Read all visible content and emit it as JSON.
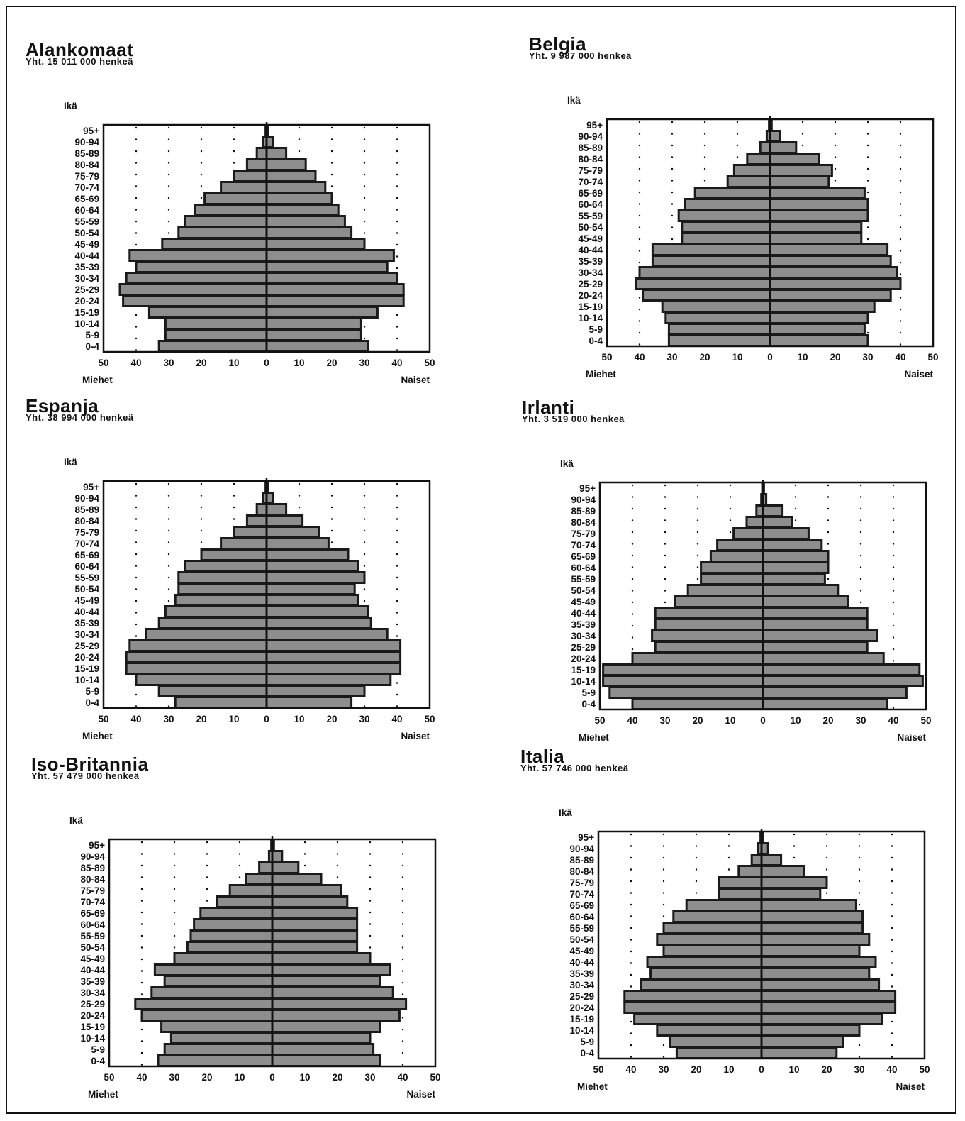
{
  "axis": {
    "age_label": "Ikä",
    "men_label": "Miehet",
    "women_label": "Naiset",
    "x_ticks": [
      "50",
      "40",
      "30",
      "20",
      "10",
      "0",
      "10",
      "20",
      "30",
      "40",
      "50"
    ],
    "xlim": [
      -50,
      50
    ]
  },
  "colors": {
    "bar": "#8e8e8e",
    "bar_edge": "#1a1a1a",
    "frame": "#111111"
  },
  "chart_data": [
    {
      "type": "bar",
      "country": "Alankomaat",
      "total": "Yht. 15 011 000 henkeä",
      "categories": [
        "0-4",
        "5-9",
        "10-14",
        "15-19",
        "20-24",
        "25-29",
        "30-34",
        "35-39",
        "40-44",
        "45-49",
        "50-54",
        "55-59",
        "60-64",
        "65-69",
        "70-74",
        "75-79",
        "80-84",
        "85-89",
        "90-94",
        "95+"
      ],
      "series": [
        {
          "name": "Miehet",
          "values": [
            33,
            31,
            31,
            36,
            44,
            45,
            43,
            40,
            42,
            32,
            27,
            25,
            22,
            19,
            14,
            10,
            6,
            3,
            1,
            0.3
          ]
        },
        {
          "name": "Naiset",
          "values": [
            31,
            29,
            29,
            34,
            42,
            42,
            40,
            37,
            39,
            30,
            26,
            24,
            22,
            20,
            18,
            15,
            12,
            6,
            2,
            0.5
          ]
        }
      ]
    },
    {
      "type": "bar",
      "country": "Belgia",
      "total": "Yht. 9 987 000 henkeä",
      "categories": [
        "0-4",
        "5-9",
        "10-14",
        "15-19",
        "20-24",
        "25-29",
        "30-34",
        "35-39",
        "40-44",
        "45-49",
        "50-54",
        "55-59",
        "60-64",
        "65-69",
        "70-74",
        "75-79",
        "80-84",
        "85-89",
        "90-94",
        "95+"
      ],
      "series": [
        {
          "name": "Miehet",
          "values": [
            31,
            31,
            32,
            33,
            39,
            41,
            40,
            36,
            36,
            27,
            27,
            28,
            26,
            23,
            13,
            11,
            7,
            3,
            1,
            0.3
          ]
        },
        {
          "name": "Naiset",
          "values": [
            30,
            29,
            30,
            32,
            37,
            40,
            39,
            37,
            36,
            28,
            28,
            30,
            30,
            29,
            18,
            19,
            15,
            8,
            3,
            0.5
          ]
        }
      ]
    },
    {
      "type": "bar",
      "country": "Espanja",
      "total": "Yht. 38 994 000 henkeä",
      "categories": [
        "0-4",
        "5-9",
        "10-14",
        "15-19",
        "20-24",
        "25-29",
        "30-34",
        "35-39",
        "40-44",
        "45-49",
        "50-54",
        "55-59",
        "60-64",
        "65-69",
        "70-74",
        "75-79",
        "80-84",
        "85-89",
        "90-94",
        "95+"
      ],
      "series": [
        {
          "name": "Miehet",
          "values": [
            28,
            33,
            40,
            43,
            43,
            42,
            37,
            33,
            31,
            28,
            27,
            27,
            25,
            20,
            14,
            10,
            6,
            3,
            1,
            0.3
          ]
        },
        {
          "name": "Naiset",
          "values": [
            26,
            30,
            38,
            41,
            41,
            41,
            37,
            32,
            31,
            28,
            27,
            30,
            28,
            25,
            19,
            16,
            11,
            6,
            2,
            0.5
          ]
        }
      ]
    },
    {
      "type": "bar",
      "country": "Irlanti",
      "total": "Yht. 3 519 000 henkeä",
      "categories": [
        "0-4",
        "5-9",
        "10-14",
        "15-19",
        "20-24",
        "25-29",
        "30-34",
        "35-39",
        "40-44",
        "45-49",
        "50-54",
        "55-59",
        "60-64",
        "65-69",
        "70-74",
        "75-79",
        "80-84",
        "85-89",
        "90-94",
        "95+"
      ],
      "series": [
        {
          "name": "Miehet",
          "values": [
            40,
            47,
            49,
            49,
            40,
            33,
            34,
            33,
            33,
            27,
            23,
            19,
            19,
            16,
            14,
            9,
            5,
            2,
            0.5,
            0.2
          ]
        },
        {
          "name": "Naiset",
          "values": [
            38,
            44,
            49,
            48,
            37,
            32,
            35,
            32,
            32,
            26,
            23,
            19,
            20,
            20,
            18,
            14,
            9,
            6,
            1,
            0.3
          ]
        }
      ]
    },
    {
      "type": "bar",
      "country": "Iso-Britannia",
      "total": "Yht. 57 479 000 henkeä",
      "categories": [
        "0-4",
        "5-9",
        "10-14",
        "15-19",
        "20-24",
        "25-29",
        "30-34",
        "35-39",
        "40-44",
        "45-49",
        "50-54",
        "55-59",
        "60-64",
        "65-69",
        "70-74",
        "75-79",
        "80-84",
        "85-89",
        "90-94",
        "95+"
      ],
      "series": [
        {
          "name": "Miehet",
          "values": [
            35,
            33,
            31,
            34,
            40,
            42,
            37,
            33,
            36,
            30,
            26,
            25,
            24,
            22,
            17,
            13,
            8,
            4,
            1,
            0.3
          ]
        },
        {
          "name": "Naiset",
          "values": [
            33,
            31,
            30,
            33,
            39,
            41,
            37,
            33,
            36,
            30,
            26,
            26,
            26,
            26,
            23,
            21,
            15,
            8,
            3,
            0.5
          ]
        }
      ]
    },
    {
      "type": "bar",
      "country": "Italia",
      "total": "Yht. 57 746 000 henkeä",
      "categories": [
        "0-4",
        "5-9",
        "10-14",
        "15-19",
        "20-24",
        "25-29",
        "30-34",
        "35-39",
        "40-44",
        "45-49",
        "50-54",
        "55-59",
        "60-64",
        "65-69",
        "70-74",
        "75-79",
        "80-84",
        "85-89",
        "90-94",
        "95+"
      ],
      "series": [
        {
          "name": "Miehet",
          "values": [
            26,
            28,
            32,
            39,
            42,
            42,
            37,
            34,
            35,
            30,
            32,
            30,
            27,
            23,
            13,
            13,
            7,
            3,
            1,
            0.3
          ]
        },
        {
          "name": "Naiset",
          "values": [
            23,
            25,
            30,
            37,
            41,
            41,
            36,
            33,
            35,
            30,
            33,
            31,
            31,
            29,
            18,
            20,
            13,
            6,
            2,
            0.5
          ]
        }
      ]
    }
  ]
}
